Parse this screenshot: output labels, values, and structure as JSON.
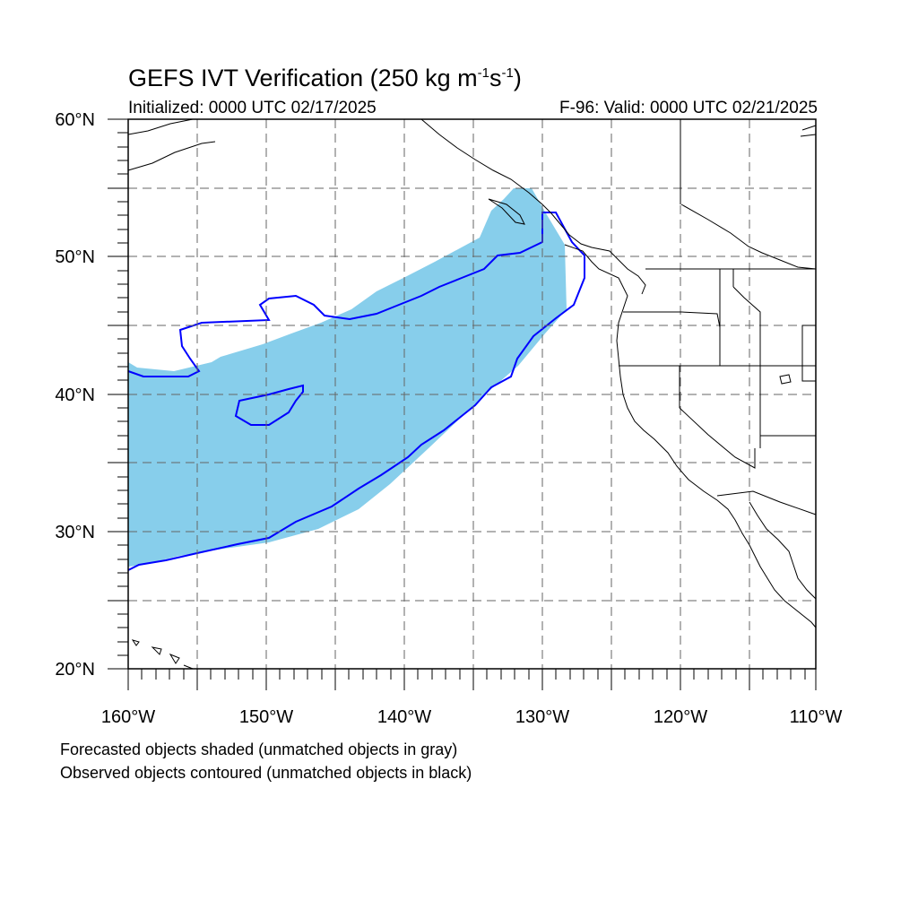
{
  "title": {
    "main": "GEFS IVT Verification (250 kg m",
    "sup1": "-1",
    "mid": "s",
    "sup2": "-1",
    "end": ")"
  },
  "initialized": "Initialized: 0000 UTC 02/17/2025",
  "valid": "F-96: Valid: 0000 UTC 02/21/2025",
  "legend": {
    "line1": "Forecasted objects shaded (unmatched objects in gray)",
    "line2": "Observed objects contoured (unmatched objects in black)"
  },
  "map": {
    "lon_range": [
      -160,
      -110
    ],
    "lat_range": [
      20,
      60
    ],
    "lon_labels": [
      "160°W",
      "150°W",
      "140°W",
      "130°W",
      "120°W",
      "110°W"
    ],
    "lat_labels": [
      "60°N",
      "50°N",
      "40°N",
      "30°N",
      "20°N"
    ],
    "forecast_fill_color": "#87ceeb",
    "observed_contour_color": "#0000ff",
    "coastline_color": "#000000",
    "grid_style": "dashed"
  }
}
